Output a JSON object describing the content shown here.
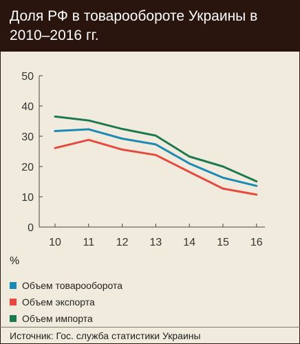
{
  "title": "Доля РФ в товарообороте Украины в 2010–2016 гг.",
  "unit_label": "%",
  "source": "Источник: Гос. служба статистики Украины",
  "chart_data": {
    "type": "line",
    "x": [
      "10",
      "11",
      "12",
      "13",
      "14",
      "15",
      "16"
    ],
    "ylim": [
      0,
      50
    ],
    "yticks": [
      0,
      10,
      20,
      30,
      40,
      50
    ],
    "grid": false,
    "legend_position": "bottom-left",
    "series": [
      {
        "name": "Объем товарооборота",
        "color": "#1a8ab4",
        "values": [
          31.7,
          32.3,
          29.2,
          27.3,
          21.0,
          16.3,
          13.6
        ]
      },
      {
        "name": "Объем экспорта",
        "color": "#e8493e",
        "values": [
          26.1,
          28.8,
          25.6,
          23.8,
          18.2,
          12.7,
          10.7
        ]
      },
      {
        "name": "Объем импорта",
        "color": "#1d7a50",
        "values": [
          36.5,
          35.2,
          32.4,
          30.2,
          23.3,
          20.0,
          15.1
        ]
      }
    ]
  }
}
